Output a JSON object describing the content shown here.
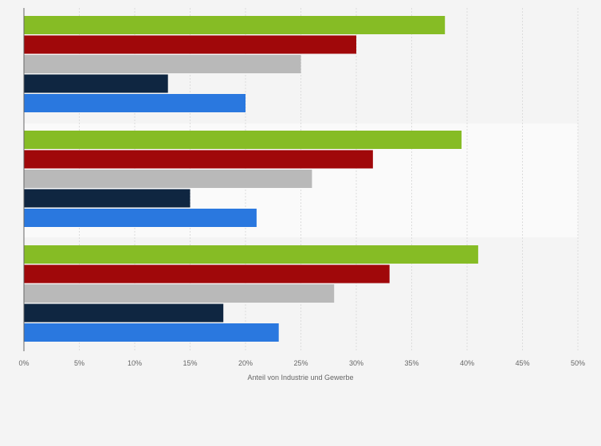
{
  "chart_data": {
    "type": "bar",
    "orientation": "horizontal",
    "xlabel": "Anteil von Industrie und Gewerbe",
    "xlim": [
      0,
      50
    ],
    "x_ticks": [
      "0%",
      "5%",
      "10%",
      "15%",
      "20%",
      "25%",
      "30%",
      "35%",
      "40%",
      "45%",
      "50%"
    ],
    "tick_values": [
      0,
      5,
      10,
      15,
      20,
      25,
      30,
      35,
      40,
      45,
      50
    ],
    "grid": true,
    "legend": "none",
    "groups": [
      {
        "values": [
          38,
          30,
          25,
          13,
          20
        ]
      },
      {
        "values": [
          39.5,
          31.5,
          26,
          15,
          21
        ]
      },
      {
        "values": [
          41,
          33,
          28,
          18,
          23
        ]
      }
    ],
    "series_colors": [
      "#86bc25",
      "#a0080a",
      "#b9b9b9",
      "#0f2641",
      "#2a78df"
    ]
  }
}
